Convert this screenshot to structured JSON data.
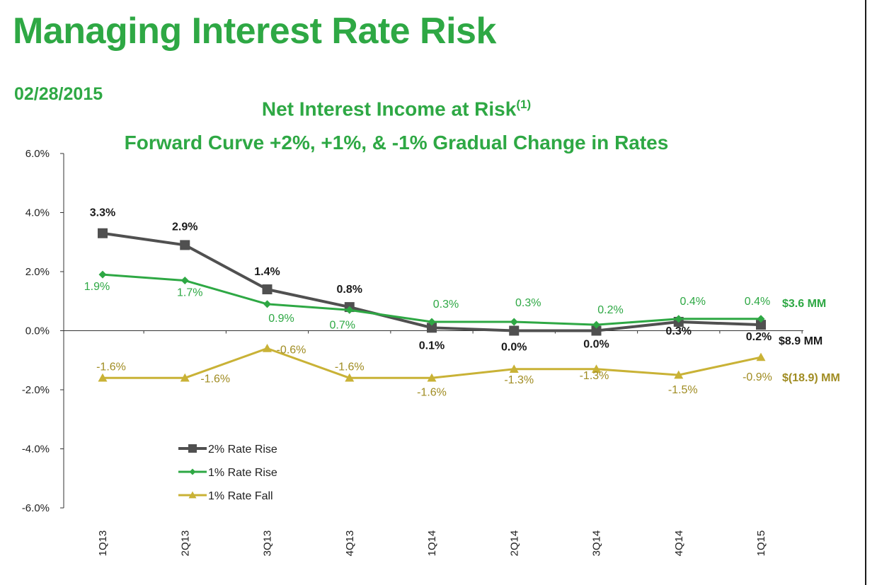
{
  "title": "Managing Interest Rate Risk",
  "date": "02/28/2015",
  "chart_data": {
    "type": "line",
    "title": "Net Interest Income at Risk",
    "title_sup": "(1)",
    "subtitle": "Forward Curve +2%, +1%, & -1% Gradual Change in Rates",
    "categories": [
      "1Q13",
      "2Q13",
      "3Q13",
      "4Q13",
      "1Q14",
      "2Q14",
      "3Q14",
      "4Q14",
      "1Q15"
    ],
    "ylim": [
      -6,
      6
    ],
    "yticks": [
      "-6.0%",
      "-4.0%",
      "-2.0%",
      "0.0%",
      "2.0%",
      "4.0%",
      "6.0%"
    ],
    "legend_position": "lower-left",
    "grid": false,
    "series": [
      {
        "name": "2% Rate Rise",
        "color": "#505050",
        "marker": "square",
        "values": [
          3.3,
          2.9,
          1.4,
          0.8,
          0.1,
          0.0,
          0.0,
          0.3,
          0.2
        ],
        "labels": [
          "3.3%",
          "2.9%",
          "1.4%",
          "0.8%",
          "0.1%",
          "0.0%",
          "0.0%",
          "0.3%",
          "0.2%"
        ],
        "end_annotation": "$8.9 MM"
      },
      {
        "name": "1% Rate Rise",
        "color": "#2ea844",
        "marker": "diamond",
        "values": [
          1.9,
          1.7,
          0.9,
          0.7,
          0.3,
          0.3,
          0.2,
          0.4,
          0.4
        ],
        "labels": [
          "1.9%",
          "1.7%",
          "0.9%",
          "0.7%",
          "0.3%",
          "0.3%",
          "0.2%",
          "0.4%",
          "0.4%"
        ],
        "end_annotation": "$3.6 MM"
      },
      {
        "name": "1% Rate Fall",
        "color": "#c9b236",
        "label_color": "#a08c22",
        "marker": "triangle",
        "values": [
          -1.6,
          -1.6,
          -0.6,
          -1.6,
          -1.6,
          -1.3,
          -1.3,
          -1.5,
          -0.9
        ],
        "labels": [
          "-1.6%",
          "-1.6%",
          "-0.6%",
          "-1.6%",
          "-1.6%",
          "-1.3%",
          "-1.3%",
          "-1.5%",
          "-0.9%"
        ],
        "end_annotation": "$(18.9) MM"
      }
    ]
  }
}
